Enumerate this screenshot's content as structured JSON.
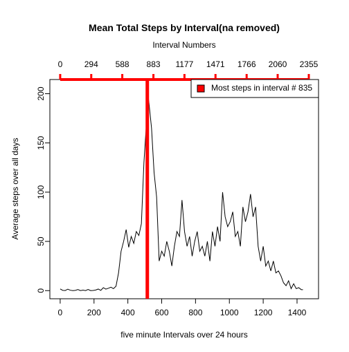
{
  "chart_data": {
    "type": "line",
    "title": "Mean Total Steps by Interval(na removed)",
    "xlabel": "five minute Intervals over 24 hours",
    "ylabel": "Average steps over all days",
    "x2label": "Interval Numbers",
    "x": [
      0,
      15,
      30,
      45,
      60,
      75,
      90,
      105,
      120,
      135,
      150,
      165,
      180,
      195,
      210,
      225,
      240,
      255,
      270,
      285,
      300,
      315,
      330,
      345,
      360,
      375,
      390,
      405,
      420,
      435,
      450,
      465,
      480,
      495,
      510,
      515,
      525,
      540,
      555,
      570,
      585,
      600,
      615,
      630,
      645,
      660,
      675,
      690,
      705,
      720,
      735,
      750,
      765,
      780,
      795,
      810,
      825,
      840,
      855,
      870,
      885,
      900,
      915,
      930,
      945,
      960,
      975,
      990,
      1005,
      1020,
      1035,
      1050,
      1065,
      1080,
      1095,
      1110,
      1125,
      1140,
      1155,
      1170,
      1185,
      1200,
      1215,
      1230,
      1245,
      1260,
      1275,
      1290,
      1305,
      1320,
      1335,
      1350,
      1365,
      1380,
      1395,
      1410,
      1425,
      1435
    ],
    "series": [
      {
        "name": "Most steps in interval # 835",
        "color": "#000000",
        "values": [
          1.7,
          0.3,
          0.1,
          1.5,
          0.4,
          0,
          0.3,
          1.1,
          0,
          0.5,
          0,
          1.2,
          0,
          0.2,
          0.6,
          1.6,
          0.3,
          3,
          1.5,
          2.4,
          3.5,
          2,
          4.5,
          18,
          40,
          50,
          62,
          44,
          55,
          48,
          60,
          56,
          68,
          130,
          170,
          206,
          190,
          165,
          120,
          95,
          30,
          40,
          35,
          50,
          40,
          25,
          45,
          60,
          55,
          92,
          60,
          45,
          55,
          35,
          50,
          60,
          40,
          45,
          35,
          50,
          30,
          60,
          45,
          65,
          50,
          100,
          75,
          65,
          70,
          80,
          55,
          60,
          45,
          85,
          70,
          80,
          98,
          75,
          85,
          45,
          30,
          45,
          25,
          30,
          20,
          30,
          18,
          20,
          15,
          8,
          5,
          10,
          2,
          7,
          2,
          3,
          1,
          1
        ]
      }
    ],
    "vline": 515,
    "marker_color": "#ff0000",
    "xlim": [
      -61,
      1527
    ],
    "xticks": [
      0,
      200,
      400,
      600,
      800,
      1000,
      1200,
      1400
    ],
    "ylim": [
      -8.25,
      214.4
    ],
    "yticks": [
      0,
      50,
      100,
      150,
      200
    ],
    "x2lim": [
      -98,
      2447
    ],
    "x2ticks": [
      0,
      294,
      588,
      883,
      1177,
      1471,
      1766,
      2060,
      2355
    ],
    "legend": "topright"
  }
}
